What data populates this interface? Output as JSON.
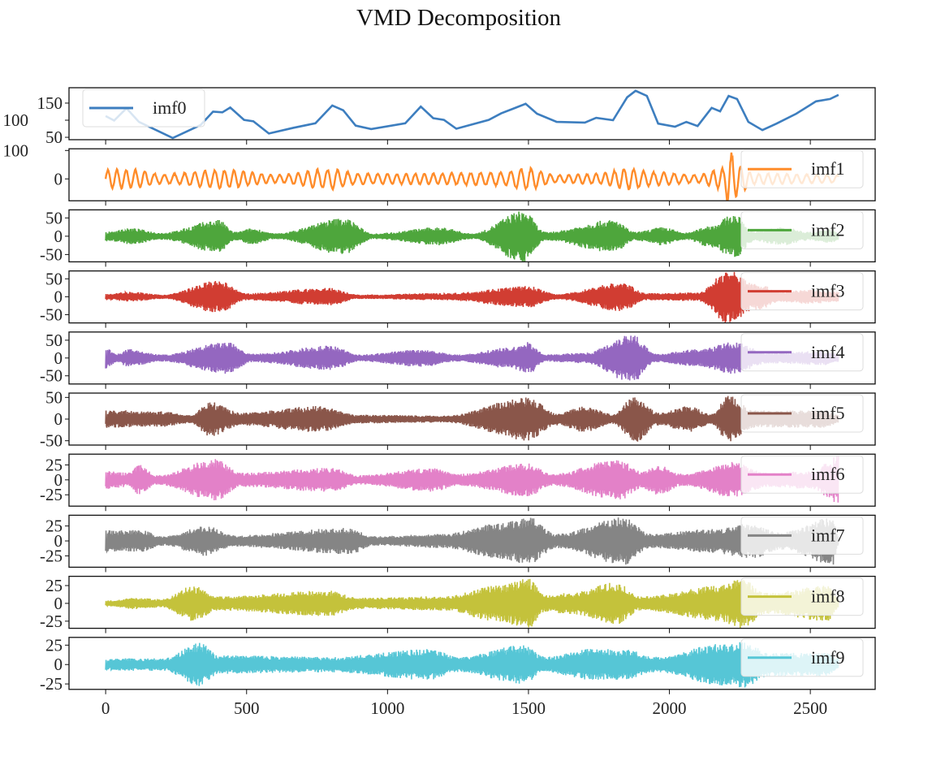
{
  "chart_data": {
    "type": "line",
    "title": "VMD Decomposition",
    "xlim": [
      -130,
      2730
    ],
    "xticks": [
      0,
      500,
      1000,
      1500,
      2000,
      2500
    ],
    "grid": false,
    "note_series_format": "imf0 given as sampled [x, value] points; imf1-imf9 are oscillatory components given as amplitude envelopes [x, amplitude]",
    "series": [
      {
        "name": "imf0",
        "color": "#3d7ebf",
        "legend": "upper-left",
        "ylim": [
          43,
          195
        ],
        "yticks": [
          50,
          100,
          150
        ],
        "points": [
          [
            0,
            112
          ],
          [
            30,
            99
          ],
          [
            74,
            135
          ],
          [
            118,
            95
          ],
          [
            238,
            48
          ],
          [
            337,
            86
          ],
          [
            381,
            125
          ],
          [
            414,
            123
          ],
          [
            442,
            137
          ],
          [
            491,
            101
          ],
          [
            524,
            97
          ],
          [
            579,
            61
          ],
          [
            667,
            78
          ],
          [
            744,
            91
          ],
          [
            804,
            143
          ],
          [
            843,
            129
          ],
          [
            887,
            84
          ],
          [
            942,
            74
          ],
          [
            1063,
            91
          ],
          [
            1118,
            140
          ],
          [
            1162,
            106
          ],
          [
            1200,
            101
          ],
          [
            1244,
            75
          ],
          [
            1359,
            101
          ],
          [
            1403,
            120
          ],
          [
            1490,
            148
          ],
          [
            1530,
            119
          ],
          [
            1600,
            95
          ],
          [
            1700,
            93
          ],
          [
            1740,
            107
          ],
          [
            1800,
            100
          ],
          [
            1850,
            167
          ],
          [
            1880,
            186
          ],
          [
            1920,
            171
          ],
          [
            1960,
            90
          ],
          [
            2020,
            81
          ],
          [
            2060,
            95
          ],
          [
            2100,
            83
          ],
          [
            2150,
            136
          ],
          [
            2180,
            126
          ],
          [
            2210,
            171
          ],
          [
            2240,
            162
          ],
          [
            2280,
            95
          ],
          [
            2330,
            71
          ],
          [
            2380,
            90
          ],
          [
            2450,
            119
          ],
          [
            2520,
            155
          ],
          [
            2570,
            162
          ],
          [
            2600,
            174
          ]
        ]
      },
      {
        "name": "imf1",
        "color": "#ff8c2a",
        "legend": "right",
        "ylim": [
          -77,
          106
        ],
        "yticks": [
          0,
          100
        ],
        "envelope": [
          [
            0,
            35
          ],
          [
            100,
            35
          ],
          [
            200,
            18
          ],
          [
            430,
            35
          ],
          [
            600,
            15
          ],
          [
            800,
            38
          ],
          [
            900,
            20
          ],
          [
            1100,
            20
          ],
          [
            1400,
            25
          ],
          [
            1500,
            40
          ],
          [
            1600,
            15
          ],
          [
            1750,
            20
          ],
          [
            1850,
            40
          ],
          [
            1950,
            25
          ],
          [
            2100,
            15
          ],
          [
            2190,
            40
          ],
          [
            2215,
            100
          ],
          [
            2250,
            50
          ],
          [
            2300,
            20
          ],
          [
            2600,
            15
          ]
        ]
      },
      {
        "name": "imf2",
        "color": "#4ea63c",
        "legend": "right",
        "ylim": [
          -70,
          72
        ],
        "yticks": [
          -50,
          0,
          50
        ],
        "envelope": [
          [
            0,
            12
          ],
          [
            90,
            22
          ],
          [
            200,
            10
          ],
          [
            400,
            45
          ],
          [
            460,
            12
          ],
          [
            520,
            22
          ],
          [
            600,
            8
          ],
          [
            845,
            50
          ],
          [
            950,
            8
          ],
          [
            1190,
            25
          ],
          [
            1300,
            8
          ],
          [
            1483,
            70
          ],
          [
            1560,
            12
          ],
          [
            1800,
            45
          ],
          [
            1880,
            12
          ],
          [
            1975,
            25
          ],
          [
            2060,
            10
          ],
          [
            2145,
            30
          ],
          [
            2230,
            60
          ],
          [
            2300,
            15
          ],
          [
            2400,
            25
          ],
          [
            2500,
            12
          ],
          [
            2580,
            20
          ],
          [
            2600,
            10
          ]
        ]
      },
      {
        "name": "imf3",
        "color": "#d13d32",
        "legend": "right",
        "ylim": [
          -73,
          72
        ],
        "yticks": [
          -50,
          0,
          50
        ],
        "envelope": [
          [
            0,
            8
          ],
          [
            90,
            14
          ],
          [
            200,
            6
          ],
          [
            400,
            45
          ],
          [
            500,
            10
          ],
          [
            790,
            25
          ],
          [
            900,
            6
          ],
          [
            1200,
            10
          ],
          [
            1500,
            30
          ],
          [
            1600,
            8
          ],
          [
            1830,
            40
          ],
          [
            1920,
            10
          ],
          [
            2100,
            12
          ],
          [
            2210,
            75
          ],
          [
            2300,
            40
          ],
          [
            2400,
            15
          ],
          [
            2500,
            20
          ],
          [
            2600,
            15
          ]
        ]
      },
      {
        "name": "imf4",
        "color": "#9467c0",
        "legend": "right",
        "ylim": [
          -73,
          73
        ],
        "yticks": [
          -50,
          0,
          50
        ],
        "envelope": [
          [
            0,
            30
          ],
          [
            40,
            12
          ],
          [
            80,
            25
          ],
          [
            200,
            10
          ],
          [
            430,
            45
          ],
          [
            520,
            12
          ],
          [
            800,
            35
          ],
          [
            900,
            10
          ],
          [
            1120,
            25
          ],
          [
            1250,
            10
          ],
          [
            1440,
            30
          ],
          [
            1500,
            45
          ],
          [
            1560,
            10
          ],
          [
            1700,
            15
          ],
          [
            1870,
            70
          ],
          [
            1950,
            12
          ],
          [
            2100,
            25
          ],
          [
            2230,
            45
          ],
          [
            2350,
            15
          ],
          [
            2550,
            20
          ],
          [
            2600,
            12
          ]
        ]
      },
      {
        "name": "imf5",
        "color": "#8a564a",
        "legend": "right",
        "ylim": [
          -60,
          60
        ],
        "yticks": [
          -50,
          0,
          50
        ],
        "envelope": [
          [
            0,
            20
          ],
          [
            200,
            18
          ],
          [
            300,
            10
          ],
          [
            370,
            40
          ],
          [
            480,
            15
          ],
          [
            750,
            30
          ],
          [
            900,
            10
          ],
          [
            1200,
            8
          ],
          [
            1500,
            50
          ],
          [
            1600,
            15
          ],
          [
            1700,
            30
          ],
          [
            1800,
            12
          ],
          [
            1880,
            55
          ],
          [
            1960,
            15
          ],
          [
            2070,
            30
          ],
          [
            2150,
            12
          ],
          [
            2210,
            55
          ],
          [
            2300,
            20
          ],
          [
            2550,
            20
          ],
          [
            2600,
            10
          ]
        ]
      },
      {
        "name": "imf6",
        "color": "#e381c8",
        "legend": "right",
        "ylim": [
          -44,
          43
        ],
        "yticks": [
          -25,
          0,
          25
        ],
        "envelope": [
          [
            0,
            15
          ],
          [
            80,
            12
          ],
          [
            120,
            25
          ],
          [
            180,
            8
          ],
          [
            390,
            35
          ],
          [
            480,
            12
          ],
          [
            800,
            20
          ],
          [
            900,
            8
          ],
          [
            1160,
            20
          ],
          [
            1250,
            10
          ],
          [
            1500,
            28
          ],
          [
            1580,
            10
          ],
          [
            1820,
            35
          ],
          [
            1900,
            15
          ],
          [
            1960,
            25
          ],
          [
            2050,
            10
          ],
          [
            2230,
            30
          ],
          [
            2350,
            12
          ],
          [
            2500,
            15
          ],
          [
            2600,
            40
          ]
        ]
      },
      {
        "name": "imf7",
        "color": "#858585",
        "legend": "right",
        "ylim": [
          -44,
          43
        ],
        "yticks": [
          -25,
          0,
          25
        ],
        "envelope": [
          [
            0,
            18
          ],
          [
            130,
            18
          ],
          [
            200,
            8
          ],
          [
            360,
            25
          ],
          [
            450,
            10
          ],
          [
            870,
            22
          ],
          [
            950,
            8
          ],
          [
            1200,
            12
          ],
          [
            1400,
            30
          ],
          [
            1500,
            40
          ],
          [
            1600,
            12
          ],
          [
            1840,
            40
          ],
          [
            1930,
            12
          ],
          [
            2150,
            20
          ],
          [
            2290,
            30
          ],
          [
            2400,
            15
          ],
          [
            2580,
            40
          ],
          [
            2600,
            10
          ]
        ]
      },
      {
        "name": "imf8",
        "color": "#c4c23b",
        "legend": "right",
        "ylim": [
          -35,
          38
        ],
        "yticks": [
          -25,
          0,
          25
        ],
        "envelope": [
          [
            0,
            4
          ],
          [
            100,
            8
          ],
          [
            200,
            6
          ],
          [
            310,
            25
          ],
          [
            400,
            10
          ],
          [
            790,
            18
          ],
          [
            900,
            8
          ],
          [
            1200,
            10
          ],
          [
            1380,
            25
          ],
          [
            1500,
            35
          ],
          [
            1560,
            12
          ],
          [
            1650,
            15
          ],
          [
            1810,
            30
          ],
          [
            1900,
            10
          ],
          [
            2180,
            25
          ],
          [
            2250,
            35
          ],
          [
            2350,
            15
          ],
          [
            2560,
            25
          ],
          [
            2600,
            8
          ]
        ]
      },
      {
        "name": "imf9",
        "color": "#56c6d6",
        "legend": "right",
        "ylim": [
          -32,
          35
        ],
        "yticks": [
          -25,
          0,
          25
        ],
        "envelope": [
          [
            0,
            8
          ],
          [
            200,
            8
          ],
          [
            340,
            28
          ],
          [
            400,
            12
          ],
          [
            800,
            10
          ],
          [
            1150,
            20
          ],
          [
            1250,
            10
          ],
          [
            1480,
            25
          ],
          [
            1560,
            10
          ],
          [
            1720,
            20
          ],
          [
            1840,
            20
          ],
          [
            1950,
            10
          ],
          [
            2200,
            28
          ],
          [
            2270,
            30
          ],
          [
            2350,
            15
          ],
          [
            2560,
            15
          ],
          [
            2600,
            8
          ]
        ]
      }
    ]
  }
}
